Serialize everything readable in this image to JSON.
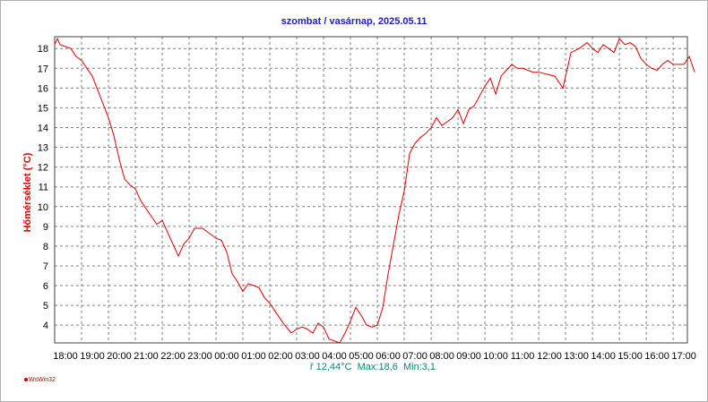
{
  "chart_data": {
    "type": "line",
    "title": "szombat / vasárnap, 2025.05.11",
    "ylabel": "Hőmérséklet  (°C)",
    "xlabel": "",
    "ylim": [
      3.1,
      18.6
    ],
    "y_ticks": [
      4,
      5,
      6,
      7,
      8,
      9,
      10,
      11,
      12,
      13,
      14,
      15,
      16,
      17,
      18
    ],
    "x_ticks": [
      "18:00",
      "19:00",
      "20:00",
      "21:00",
      "22:00",
      "23:00",
      "00:00",
      "01:00",
      "02:00",
      "03:00",
      "04:00",
      "05:00",
      "06:00",
      "07:00",
      "08:00",
      "09:00",
      "10:00",
      "11:00",
      "12:00",
      "13:00",
      "14:00",
      "15:00",
      "16:00",
      "17:00"
    ],
    "grid": true,
    "line_color": "#e00000",
    "series": [
      {
        "x_hours": [
          0.0,
          0.1,
          0.2,
          0.4,
          0.6,
          0.8,
          1.0,
          1.2,
          1.4,
          1.6,
          1.8,
          2.0,
          2.2,
          2.4,
          2.6,
          2.8,
          3.0,
          3.2,
          3.5,
          3.8,
          4.0,
          4.3,
          4.6,
          4.8,
          5.0,
          5.2,
          5.5,
          5.8,
          6.0,
          6.2,
          6.4,
          6.6,
          6.8,
          7.0,
          7.2,
          7.4,
          7.6,
          7.8,
          8.0,
          8.2,
          8.5,
          8.8,
          9.0,
          9.2,
          9.4,
          9.6,
          9.8,
          10.0,
          10.2,
          10.4,
          10.6,
          10.8,
          11.0,
          11.2,
          11.4,
          11.6,
          11.8,
          12.0,
          12.2,
          12.4,
          12.6,
          12.8,
          13.0,
          13.2,
          13.4,
          13.6,
          13.8,
          14.0,
          14.2,
          14.4,
          14.6,
          14.8,
          15.0,
          15.2,
          15.4,
          15.6,
          15.8,
          16.0,
          16.2,
          16.4,
          16.6,
          16.8,
          17.0,
          17.2,
          17.4,
          17.6,
          17.8,
          18.0,
          18.3,
          18.6,
          18.9,
          19.2,
          19.5,
          19.8,
          20.0,
          20.2,
          20.4,
          20.6,
          20.8,
          21.0,
          21.2,
          21.4,
          21.6,
          21.8,
          22.0,
          22.2,
          22.4,
          22.6,
          22.8,
          23.0,
          23.2,
          23.4,
          23.6,
          23.8
        ],
        "values": [
          18.2,
          18.5,
          18.2,
          18.1,
          18.0,
          17.6,
          17.4,
          17.0,
          16.6,
          15.9,
          15.2,
          14.5,
          13.6,
          12.4,
          11.4,
          11.1,
          10.9,
          10.3,
          9.7,
          9.1,
          9.3,
          8.4,
          7.5,
          8.1,
          8.4,
          8.9,
          8.9,
          8.6,
          8.4,
          8.3,
          7.7,
          6.6,
          6.2,
          5.7,
          6.1,
          6.0,
          5.9,
          5.4,
          5.1,
          4.7,
          4.1,
          3.6,
          3.8,
          3.9,
          3.8,
          3.6,
          4.1,
          3.9,
          3.3,
          3.2,
          3.1,
          3.6,
          4.2,
          4.9,
          4.5,
          4.0,
          3.9,
          4.0,
          4.9,
          6.6,
          8.1,
          9.6,
          10.8,
          12.7,
          13.2,
          13.5,
          13.7,
          14.0,
          14.5,
          14.1,
          14.3,
          14.5,
          14.9,
          14.2,
          14.9,
          15.1,
          15.6,
          16.1,
          16.5,
          15.7,
          16.6,
          16.9,
          17.2,
          17.0,
          17.0,
          16.9,
          16.8,
          16.8,
          16.7,
          16.6,
          16.0,
          17.8,
          18.0,
          18.3,
          18.0,
          17.8,
          18.2,
          18.0,
          17.8,
          18.5,
          18.2,
          18.3,
          18.1,
          17.5,
          17.2,
          17.0,
          16.9,
          17.2,
          17.4,
          17.2,
          17.2,
          17.2,
          17.6,
          16.8
        ]
      }
    ]
  },
  "stats_text": "ř 12,44°C  Max:18,6  Min:3,1",
  "brand_text": "WsWin32"
}
